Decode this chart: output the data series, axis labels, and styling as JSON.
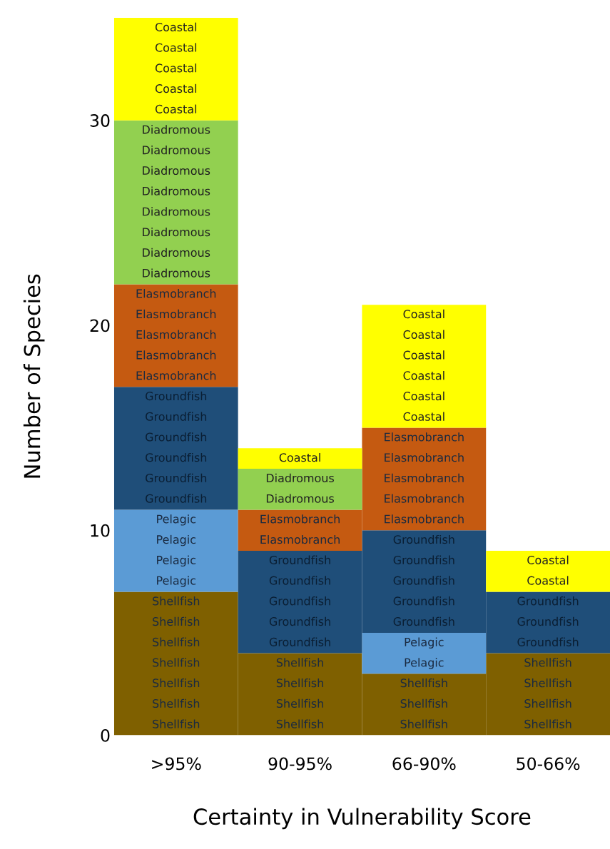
{
  "chart_data": {
    "type": "bar",
    "stacked": true,
    "xlabel": "Certainty in Vulnerability Score",
    "ylabel": "Number of Species",
    "categories": [
      ">95%",
      "90-95%",
      "66-90%",
      "50-66%"
    ],
    "series": [
      {
        "name": "Shellfish",
        "color": "#7f6000",
        "values": [
          7,
          4,
          3,
          4
        ]
      },
      {
        "name": "Pelagic",
        "color": "#5b9bd5",
        "values": [
          4,
          0,
          2,
          0
        ]
      },
      {
        "name": "Groundfish",
        "color": "#1f4e79",
        "values": [
          6,
          5,
          5,
          3
        ]
      },
      {
        "name": "Elasmobranch",
        "color": "#c55a11",
        "values": [
          5,
          2,
          5,
          0
        ]
      },
      {
        "name": "Diadromous",
        "color": "#92d050",
        "values": [
          8,
          2,
          0,
          0
        ]
      },
      {
        "name": "Coastal",
        "color": "#ffff00",
        "values": [
          5,
          1,
          6,
          2
        ]
      }
    ],
    "ylim": [
      0,
      35
    ],
    "yticks": [
      0,
      10,
      20,
      30
    ],
    "grid": false,
    "legend": false
  }
}
